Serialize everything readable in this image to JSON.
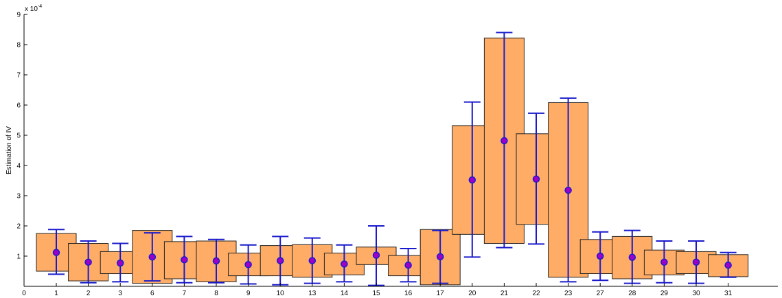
{
  "chart_data": {
    "type": "box-errorbar",
    "title": "",
    "xlabel": "",
    "ylabel": "Estimation of IV",
    "y_multiplier_label": "x 10",
    "y_multiplier_exponent": "-4",
    "ylim": [
      0,
      9
    ],
    "yticks": [
      "1",
      "2",
      "3",
      "4",
      "5",
      "6",
      "7",
      "8",
      "9"
    ],
    "xtick_zero": "0",
    "categories": [
      "1",
      "2",
      "3",
      "6",
      "7",
      "8",
      "9",
      "10",
      "13",
      "14",
      "15",
      "16",
      "17",
      "20",
      "21",
      "22",
      "23",
      "27",
      "28",
      "29",
      "30",
      "31"
    ],
    "box_low": [
      0.5,
      0.18,
      0.42,
      0.1,
      0.25,
      0.15,
      0.35,
      0.35,
      0.3,
      0.38,
      0.72,
      0.35,
      0.05,
      1.72,
      1.42,
      2.05,
      0.3,
      0.42,
      0.25,
      0.38,
      0.42,
      0.32
    ],
    "box_high": [
      1.75,
      1.42,
      1.15,
      1.85,
      1.48,
      1.5,
      1.1,
      1.35,
      1.38,
      1.1,
      1.3,
      1.02,
      1.88,
      5.32,
      8.22,
      5.05,
      6.08,
      1.55,
      1.65,
      1.2,
      1.15,
      1.05
    ],
    "mean": [
      1.12,
      0.8,
      0.77,
      0.97,
      0.88,
      0.84,
      0.72,
      0.85,
      0.85,
      0.74,
      1.03,
      0.7,
      0.98,
      3.52,
      4.82,
      3.55,
      3.18,
      1.0,
      0.96,
      0.8,
      0.8,
      0.7
    ],
    "err_low": [
      0.4,
      0.12,
      0.15,
      0.18,
      0.12,
      0.12,
      0.08,
      0.05,
      0.1,
      0.15,
      0.03,
      0.15,
      0.1,
      0.97,
      1.28,
      1.4,
      0.15,
      0.2,
      0.1,
      0.12,
      0.1,
      0.3
    ],
    "err_high": [
      1.88,
      1.5,
      1.42,
      1.77,
      1.65,
      1.55,
      1.37,
      1.65,
      1.6,
      1.37,
      2.0,
      1.25,
      1.85,
      6.1,
      8.4,
      5.73,
      6.23,
      1.8,
      1.85,
      1.5,
      1.5,
      1.12
    ],
    "box_color": "#FFAD66",
    "box_edge_color": "#222222",
    "errorbar_color": "#1A1ACC",
    "marker_color": "#9A00CC",
    "grid": false
  }
}
